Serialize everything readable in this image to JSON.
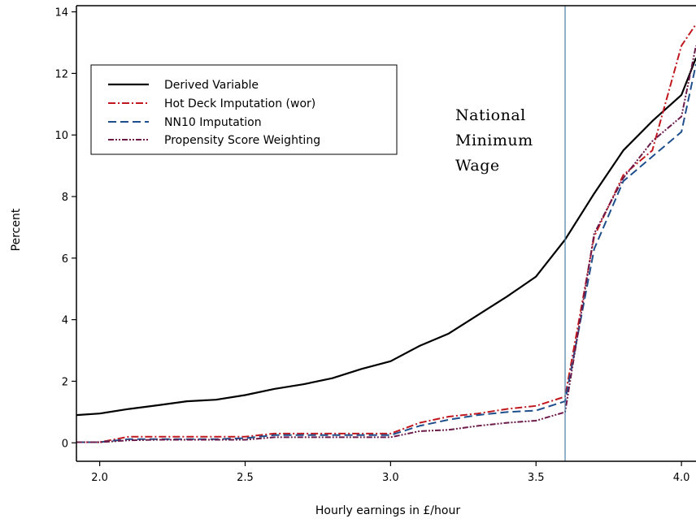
{
  "chart_data": {
    "type": "line",
    "title": "",
    "xlabel": "Hourly earnings in £/hour",
    "ylabel": "Percent",
    "xlim": [
      1.92,
      4.05
    ],
    "ylim": [
      -0.6,
      14.2
    ],
    "xticks": [
      2.0,
      2.5,
      3.0,
      3.5,
      4.0
    ],
    "xtick_labels": [
      "2.0",
      "2.5",
      "3.0",
      "3.5",
      "4.0"
    ],
    "yticks": [
      0,
      2,
      4,
      6,
      8,
      10,
      12,
      14
    ],
    "ytick_labels": [
      "0",
      "2",
      "4",
      "6",
      "8",
      "10",
      "12",
      "14"
    ],
    "grid": false,
    "legend_position": "top-left",
    "series": [
      {
        "name": "Derived Variable",
        "color": "#000000",
        "style": "solid",
        "x": [
          1.92,
          2.0,
          2.1,
          2.2,
          2.3,
          2.4,
          2.5,
          2.6,
          2.7,
          2.8,
          2.9,
          3.0,
          3.1,
          3.2,
          3.3,
          3.4,
          3.5,
          3.6,
          3.7,
          3.8,
          3.9,
          4.0,
          4.05
        ],
        "y": [
          0.9,
          0.95,
          1.1,
          1.22,
          1.35,
          1.4,
          1.55,
          1.75,
          1.9,
          2.1,
          2.4,
          2.65,
          3.15,
          3.55,
          4.15,
          4.75,
          5.4,
          6.6,
          8.1,
          9.5,
          10.45,
          11.3,
          12.5
        ]
      },
      {
        "name": "Hot Deck Imputation (wor)",
        "color": "#c0181e",
        "style": "dashdot",
        "x": [
          1.92,
          2.0,
          2.1,
          2.2,
          2.3,
          2.4,
          2.5,
          2.6,
          2.7,
          2.8,
          2.9,
          3.0,
          3.1,
          3.2,
          3.3,
          3.4,
          3.5,
          3.6,
          3.7,
          3.8,
          3.9,
          4.0,
          4.05
        ],
        "y": [
          0.02,
          0.02,
          0.2,
          0.2,
          0.2,
          0.2,
          0.2,
          0.3,
          0.3,
          0.3,
          0.3,
          0.3,
          0.65,
          0.85,
          0.95,
          1.1,
          1.2,
          1.5,
          6.7,
          8.7,
          9.5,
          12.9,
          13.6
        ]
      },
      {
        "name": "NN10 Imputation",
        "color": "#1f4e8c",
        "style": "dashed",
        "x": [
          1.92,
          2.0,
          2.1,
          2.2,
          2.3,
          2.4,
          2.5,
          2.6,
          2.7,
          2.8,
          2.9,
          3.0,
          3.1,
          3.2,
          3.3,
          3.4,
          3.5,
          3.6,
          3.7,
          3.8,
          3.9,
          4.0,
          4.05
        ],
        "y": [
          0.02,
          0.02,
          0.12,
          0.12,
          0.12,
          0.12,
          0.15,
          0.25,
          0.25,
          0.25,
          0.25,
          0.25,
          0.55,
          0.75,
          0.9,
          1.0,
          1.05,
          1.35,
          6.3,
          8.5,
          9.3,
          10.1,
          12.3
        ]
      },
      {
        "name": "Propensity Score Weighting",
        "color": "#6b1a4a",
        "style": "dashdotdot",
        "x": [
          1.92,
          2.0,
          2.1,
          2.2,
          2.3,
          2.4,
          2.5,
          2.6,
          2.7,
          2.8,
          2.9,
          3.0,
          3.1,
          3.2,
          3.3,
          3.4,
          3.5,
          3.6,
          3.7,
          3.8,
          3.9,
          4.0,
          4.05
        ],
        "y": [
          0.02,
          0.02,
          0.08,
          0.1,
          0.1,
          0.1,
          0.1,
          0.18,
          0.18,
          0.18,
          0.18,
          0.18,
          0.38,
          0.42,
          0.55,
          0.65,
          0.72,
          1.0,
          6.8,
          8.6,
          9.8,
          10.6,
          12.9
        ]
      }
    ],
    "vline": {
      "x": 3.6,
      "color": "#4a7fa6"
    },
    "annotation": {
      "lines": [
        "National",
        "Minimum",
        "Wage"
      ]
    }
  }
}
